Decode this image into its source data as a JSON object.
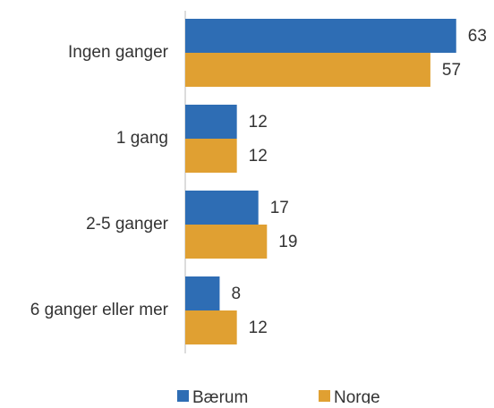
{
  "chart_data": {
    "type": "hbar",
    "categories": [
      "Ingen ganger",
      "1 gang",
      "2-5 ganger",
      "6 ganger eller mer"
    ],
    "series": [
      {
        "name": "Bærum",
        "color": "#2e6db4",
        "values": [
          63,
          12,
          17,
          8
        ]
      },
      {
        "name": "Norge",
        "color": "#e0a032",
        "values": [
          57,
          12,
          19,
          12
        ]
      }
    ],
    "xlim": [
      0,
      72
    ],
    "legend": "bottom"
  }
}
